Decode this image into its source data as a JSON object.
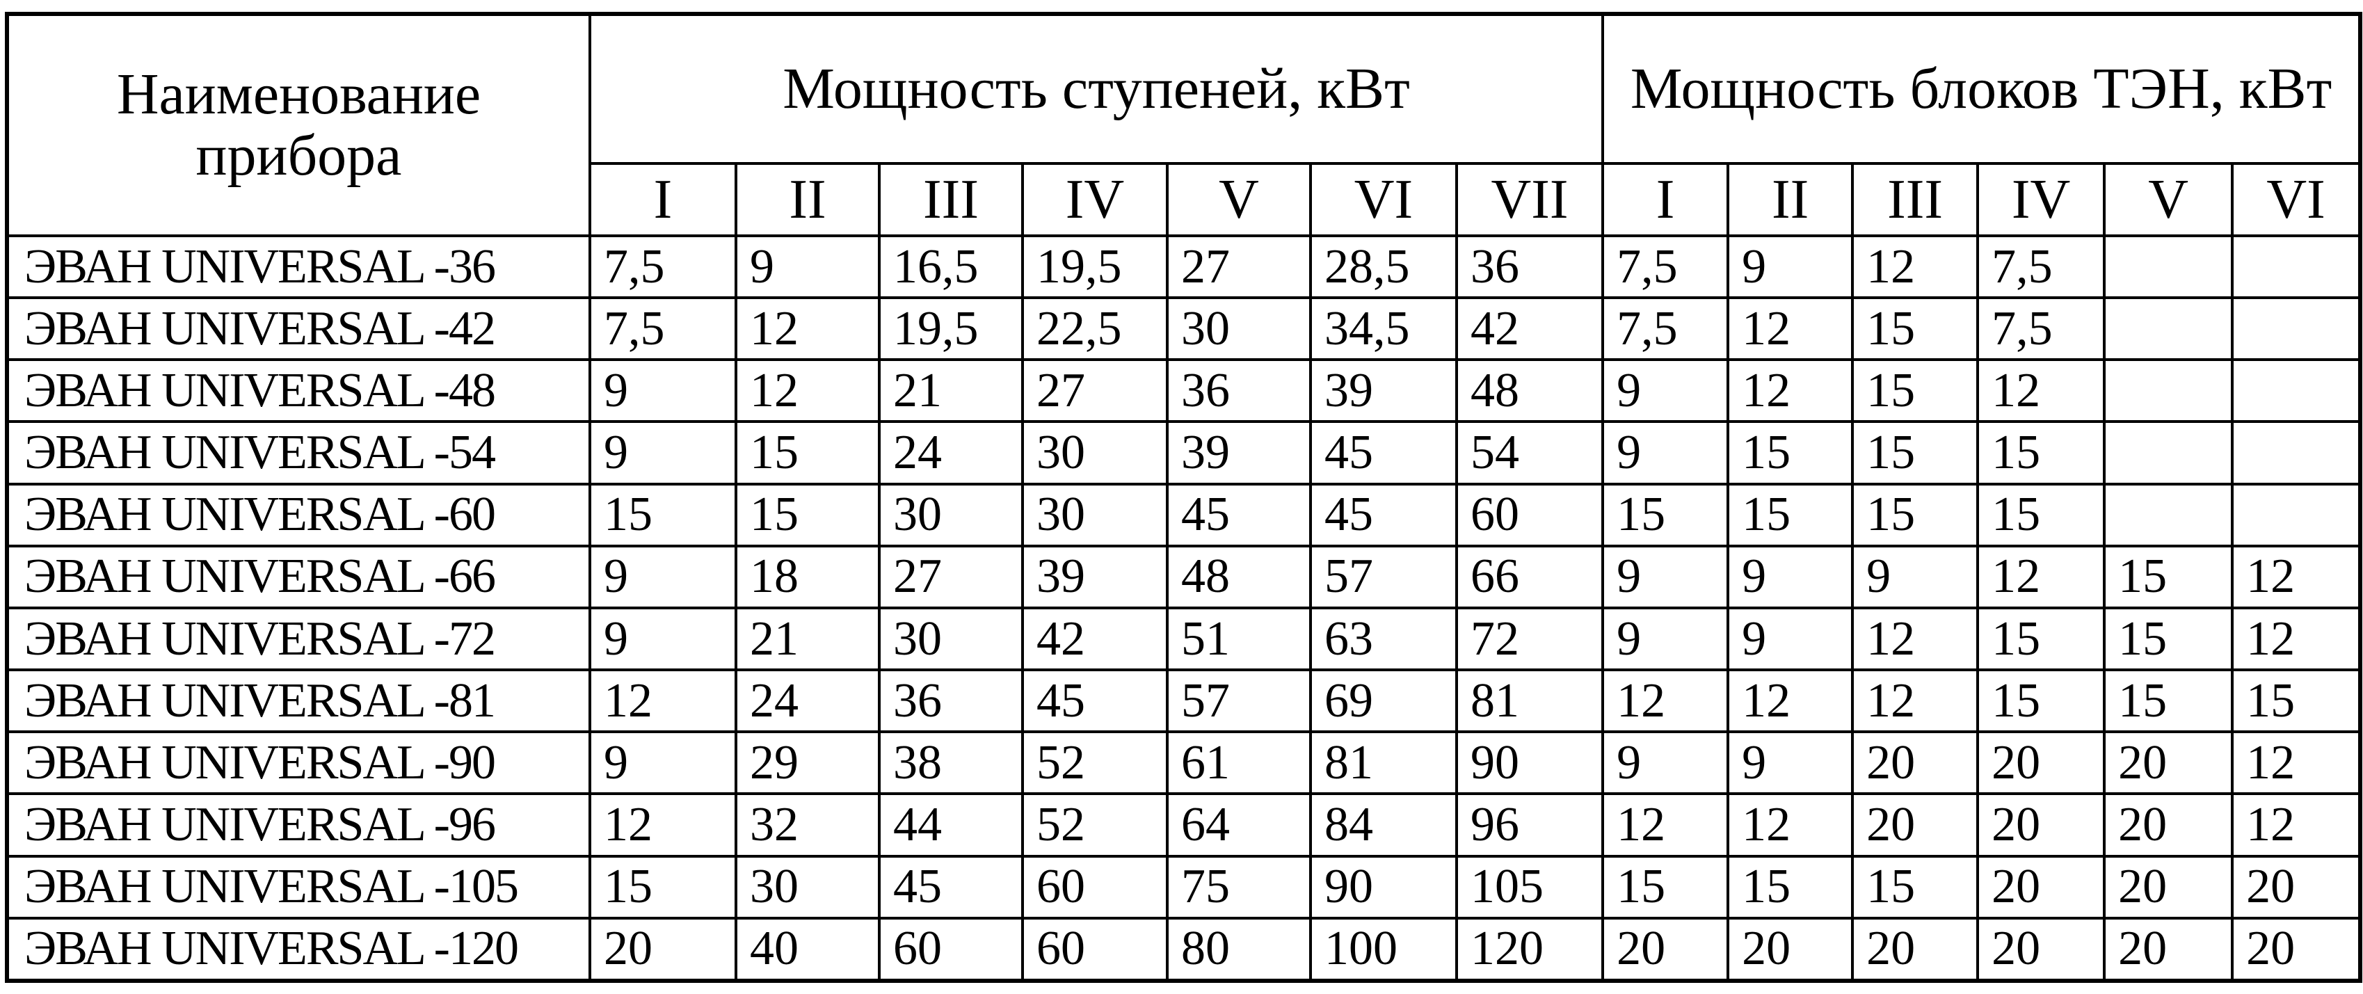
{
  "headers": {
    "name": "Наименование прибора",
    "stages_group": "Мощность ступеней, кВт",
    "blocks_group": "Мощность блоков ТЭН, кВт",
    "stage_columns": [
      "I",
      "II",
      "III",
      "IV",
      "V",
      "VI",
      "VII"
    ],
    "block_columns": [
      "I",
      "II",
      "III",
      "IV",
      "V",
      "VI"
    ]
  },
  "rows": [
    {
      "model": "ЭВАН UNIVERSAL -36",
      "stages": [
        "7,5",
        "9",
        "16,5",
        "19,5",
        "27",
        "28,5",
        "36"
      ],
      "blocks": [
        "7,5",
        "9",
        "12",
        "7,5",
        "",
        ""
      ]
    },
    {
      "model": "ЭВАН UNIVERSAL -42",
      "stages": [
        "7,5",
        "12",
        "19,5",
        "22,5",
        "30",
        "34,5",
        "42"
      ],
      "blocks": [
        "7,5",
        "12",
        "15",
        "7,5",
        "",
        ""
      ]
    },
    {
      "model": "ЭВАН UNIVERSAL -48",
      "stages": [
        "9",
        "12",
        "21",
        "27",
        "36",
        "39",
        "48"
      ],
      "blocks": [
        "9",
        "12",
        "15",
        "12",
        "",
        ""
      ]
    },
    {
      "model": "ЭВАН UNIVERSAL -54",
      "stages": [
        "9",
        "15",
        "24",
        "30",
        "39",
        "45",
        "54"
      ],
      "blocks": [
        "9",
        "15",
        "15",
        "15",
        "",
        ""
      ]
    },
    {
      "model": "ЭВАН UNIVERSAL -60",
      "stages": [
        "15",
        "15",
        "30",
        "30",
        "45",
        "45",
        "60"
      ],
      "blocks": [
        "15",
        "15",
        "15",
        "15",
        "",
        ""
      ]
    },
    {
      "model": "ЭВАН UNIVERSAL -66",
      "stages": [
        "9",
        "18",
        "27",
        "39",
        "48",
        "57",
        "66"
      ],
      "blocks": [
        "9",
        "9",
        "9",
        "12",
        "15",
        "12"
      ]
    },
    {
      "model": "ЭВАН UNIVERSAL -72",
      "stages": [
        "9",
        "21",
        "30",
        "42",
        "51",
        "63",
        "72"
      ],
      "blocks": [
        "9",
        "9",
        "12",
        "15",
        "15",
        "12"
      ]
    },
    {
      "model": "ЭВАН UNIVERSAL -81",
      "stages": [
        "12",
        "24",
        "36",
        "45",
        "57",
        "69",
        "81"
      ],
      "blocks": [
        "12",
        "12",
        "12",
        "15",
        "15",
        "15"
      ]
    },
    {
      "model": "ЭВАН UNIVERSAL -90",
      "stages": [
        "9",
        "29",
        "38",
        "52",
        "61",
        "81",
        "90"
      ],
      "blocks": [
        "9",
        "9",
        "20",
        "20",
        "20",
        "12"
      ]
    },
    {
      "model": "ЭВАН UNIVERSAL -96",
      "stages": [
        "12",
        "32",
        "44",
        "52",
        "64",
        "84",
        "96"
      ],
      "blocks": [
        "12",
        "12",
        "20",
        "20",
        "20",
        "12"
      ]
    },
    {
      "model": "ЭВАН UNIVERSAL -105",
      "stages": [
        "15",
        "30",
        "45",
        "60",
        "75",
        "90",
        "105"
      ],
      "blocks": [
        "15",
        "15",
        "15",
        "20",
        "20",
        "20"
      ]
    },
    {
      "model": "ЭВАН UNIVERSAL -120",
      "stages": [
        "20",
        "40",
        "60",
        "60",
        "80",
        "100",
        "120"
      ],
      "blocks": [
        "20",
        "20",
        "20",
        "20",
        "20",
        "20"
      ]
    }
  ]
}
